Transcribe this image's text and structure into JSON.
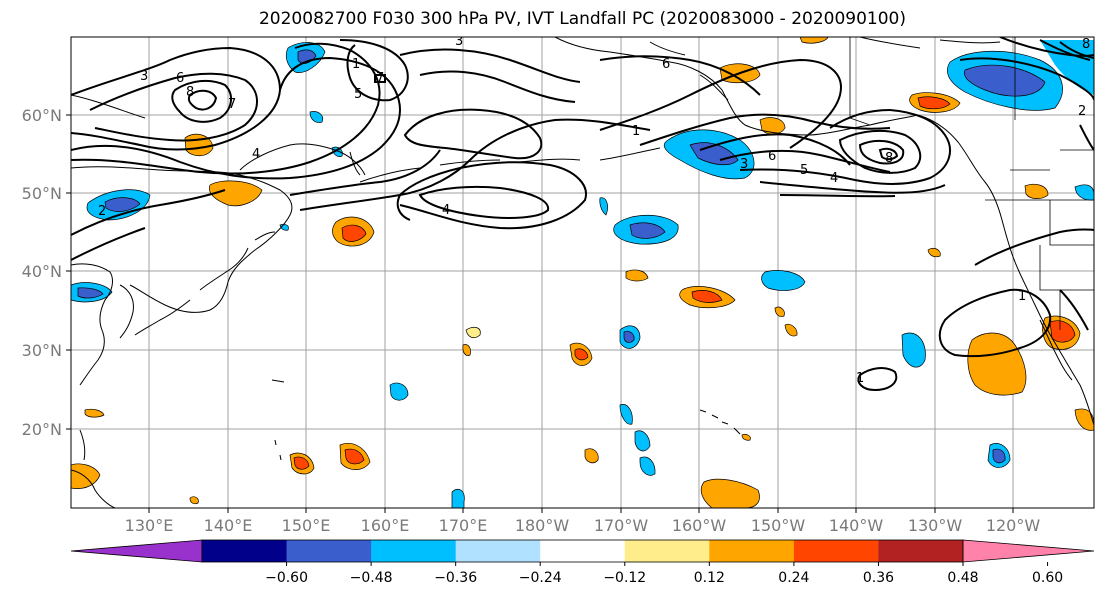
{
  "title": "2020082700 F030 300 hPa PV, IVT Landfall PC (2020083000 - 2020090100)",
  "lat_labels": [
    "60°N",
    "50°N",
    "40°N",
    "30°N",
    "20°N"
  ],
  "lon_labels": [
    "130°E",
    "140°E",
    "150°E",
    "160°E",
    "170°E",
    "180°W",
    "170°W",
    "160°W",
    "150°W",
    "140°W",
    "130°W",
    "120°W"
  ],
  "colorbar": {
    "levels": [
      "-0.60",
      "-0.48",
      "-0.36",
      "-0.24",
      "-0.12",
      "0.12",
      "0.24",
      "0.36",
      "0.48",
      "0.60"
    ],
    "colors": [
      "#9932cc",
      "#00008b",
      "#3a5fcd",
      "#00bfff",
      "#b0e2ff",
      "#ffffff",
      "#ffec8b",
      "#ffa500",
      "#ff4500",
      "#b22222",
      "#ff82ab"
    ]
  },
  "contour_labels": [
    "3",
    "6",
    "8",
    "7",
    "4",
    "5",
    "1",
    "2",
    "3",
    "4",
    "6",
    "1",
    "8",
    "4",
    "2",
    "1",
    "1",
    "3",
    "5",
    "6",
    "7",
    "8"
  ],
  "colors": {
    "purple": "#9932cc",
    "navy": "#00008b",
    "royal_blue": "#3a5fcd",
    "deep_sky": "#00bfff",
    "light_blue": "#b0e2ff",
    "light_yellow": "#ffec8b",
    "orange": "#ffa500",
    "orange_red": "#ff4500",
    "firebrick": "#b22222",
    "pink": "#ff82ab"
  }
}
